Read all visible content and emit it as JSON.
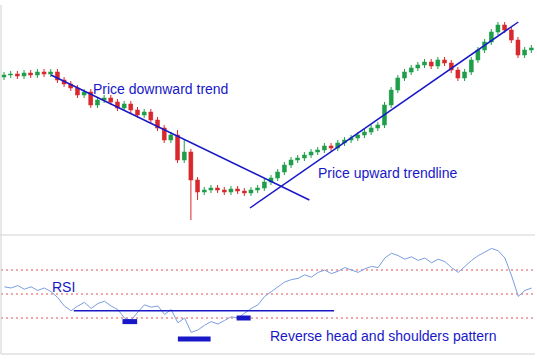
{
  "chart_data": [
    {
      "type": "candlestick",
      "x": [
        0,
        1,
        2,
        3,
        4,
        5,
        6,
        7,
        8,
        9,
        10,
        11,
        12,
        13,
        14,
        15,
        16,
        17,
        18,
        19,
        20,
        21,
        22,
        23,
        24,
        25,
        26,
        27,
        28,
        29,
        30,
        31,
        32,
        33,
        34,
        35,
        36,
        37,
        38,
        39,
        40,
        41,
        42,
        43,
        44,
        45,
        46,
        47,
        48,
        49,
        50,
        51,
        52,
        53,
        54,
        55,
        56,
        57,
        58,
        59,
        60,
        61,
        62,
        63,
        64,
        65,
        66,
        67,
        68,
        69,
        70,
        71,
        72,
        73,
        74,
        75,
        76,
        77,
        78,
        79
      ],
      "open": [
        158,
        160,
        161,
        159,
        162,
        160,
        163,
        161,
        163,
        155,
        151,
        147,
        140,
        143,
        130,
        135,
        137,
        133,
        127,
        131,
        125,
        120,
        123,
        115,
        107,
        95,
        100,
        75,
        83,
        55,
        43,
        45,
        47,
        45,
        43,
        46,
        44,
        42,
        45,
        47,
        53,
        57,
        63,
        70,
        75,
        77,
        80,
        83,
        85,
        89,
        87,
        92,
        95,
        97,
        100,
        103,
        107,
        110,
        130,
        145,
        157,
        163,
        167,
        170,
        173,
        169,
        175,
        172,
        165,
        157,
        163,
        175,
        185,
        193,
        203,
        210,
        205,
        195,
        180,
        185
      ],
      "high": [
        163,
        164,
        164,
        165,
        165,
        166,
        166,
        166,
        166,
        158,
        154,
        150,
        146,
        146,
        138,
        140,
        140,
        136,
        134,
        134,
        128,
        126,
        126,
        118,
        110,
        103,
        105,
        95,
        86,
        58,
        48,
        50,
        50,
        48,
        49,
        49,
        47,
        48,
        50,
        56,
        60,
        66,
        73,
        78,
        80,
        83,
        86,
        88,
        92,
        92,
        95,
        98,
        100,
        103,
        106,
        110,
        113,
        133,
        148,
        160,
        166,
        170,
        173,
        176,
        176,
        178,
        178,
        175,
        168,
        166,
        178,
        188,
        196,
        206,
        213,
        213,
        208,
        198,
        188,
        190
      ],
      "low": [
        155,
        157,
        156,
        156,
        157,
        157,
        158,
        158,
        152,
        148,
        144,
        137,
        137,
        127,
        127,
        132,
        130,
        124,
        124,
        122,
        117,
        117,
        112,
        104,
        92,
        92,
        72,
        72,
        15,
        35,
        40,
        42,
        42,
        40,
        40,
        41,
        39,
        39,
        42,
        44,
        50,
        54,
        60,
        67,
        72,
        74,
        77,
        80,
        82,
        84,
        84,
        89,
        92,
        94,
        97,
        100,
        104,
        107,
        127,
        142,
        154,
        160,
        164,
        167,
        166,
        166,
        169,
        162,
        154,
        154,
        160,
        172,
        182,
        190,
        200,
        202,
        192,
        177,
        177,
        182
      ],
      "close": [
        160,
        161,
        159,
        162,
        160,
        163,
        161,
        163,
        155,
        151,
        147,
        140,
        143,
        130,
        135,
        137,
        133,
        127,
        131,
        125,
        120,
        123,
        115,
        107,
        95,
        100,
        75,
        83,
        55,
        43,
        45,
        47,
        45,
        43,
        46,
        44,
        42,
        45,
        47,
        53,
        57,
        63,
        70,
        75,
        77,
        80,
        83,
        85,
        89,
        87,
        92,
        95,
        97,
        100,
        103,
        107,
        110,
        130,
        145,
        157,
        163,
        167,
        170,
        173,
        169,
        175,
        172,
        165,
        157,
        163,
        175,
        185,
        193,
        203,
        210,
        205,
        195,
        180,
        185,
        187
      ],
      "xlim": [
        -0.5,
        79.5
      ],
      "ylim": [
        0,
        230
      ],
      "tick_labels": false,
      "trendlines": [
        {
          "label": "Price downward trend",
          "x": [
            7,
            45.7
          ],
          "values": [
            160,
            35
          ],
          "color": "#1818c8"
        },
        {
          "label": "Price upward trendline",
          "x": [
            36.8,
            77
          ],
          "values": [
            27,
            213
          ],
          "color": "#1818c8"
        }
      ]
    },
    {
      "type": "line",
      "x": [
        0,
        1,
        2,
        3,
        4,
        5,
        6,
        7,
        8,
        9,
        10,
        11,
        12,
        13,
        14,
        15,
        16,
        17,
        18,
        19,
        20,
        21,
        22,
        23,
        24,
        25,
        26,
        27,
        28,
        29,
        30,
        31,
        32,
        33,
        34,
        35,
        36,
        37,
        38,
        39,
        40,
        41,
        42,
        43,
        44,
        45,
        46,
        47,
        48,
        49,
        50,
        51,
        52,
        53,
        54,
        55,
        56,
        57,
        58,
        59,
        60,
        61,
        62,
        63,
        64,
        65,
        66,
        67,
        68,
        69,
        70,
        71,
        72,
        73,
        74,
        75,
        76,
        77,
        78,
        79
      ],
      "series": [
        {
          "name": "RSI",
          "color": "#7a9ee0",
          "values": [
            56,
            55,
            57,
            54,
            56,
            53,
            55,
            52,
            47,
            40,
            36,
            40,
            43,
            38,
            42,
            44,
            40,
            37,
            30,
            28,
            35,
            41,
            39,
            40,
            33,
            37,
            26,
            30,
            18,
            20,
            24,
            27,
            25,
            28,
            31,
            30,
            34,
            38,
            41,
            48,
            52,
            56,
            60,
            62,
            63,
            66,
            64,
            68,
            70,
            67,
            69,
            72,
            70,
            68,
            71,
            73,
            72,
            80,
            84,
            82,
            79,
            81,
            78,
            80,
            76,
            79,
            77,
            72,
            68,
            73,
            78,
            82,
            85,
            88,
            86,
            80,
            65,
            48,
            53,
            55
          ]
        }
      ],
      "xlim": [
        -0.5,
        79.5
      ],
      "ylim": [
        0,
        100
      ],
      "yticks": [
        30,
        50,
        70
      ],
      "grid": true,
      "tick_labels": false,
      "annotations": [
        {
          "label": "Reverse head and shoulders pattern",
          "x": [
            10.4,
            49.4
          ],
          "value": 36,
          "color": "#1818c8"
        }
      ],
      "highlights": [
        {
          "x": [
            17.7,
            19.9
          ],
          "value": 27,
          "color": "#1818c8"
        },
        {
          "x": [
            26.0,
            30.9
          ],
          "value": 12.5,
          "color": "#1818c8"
        },
        {
          "x": [
            34.8,
            36.9
          ],
          "value": 30,
          "color": "#1818c8"
        }
      ]
    }
  ]
}
